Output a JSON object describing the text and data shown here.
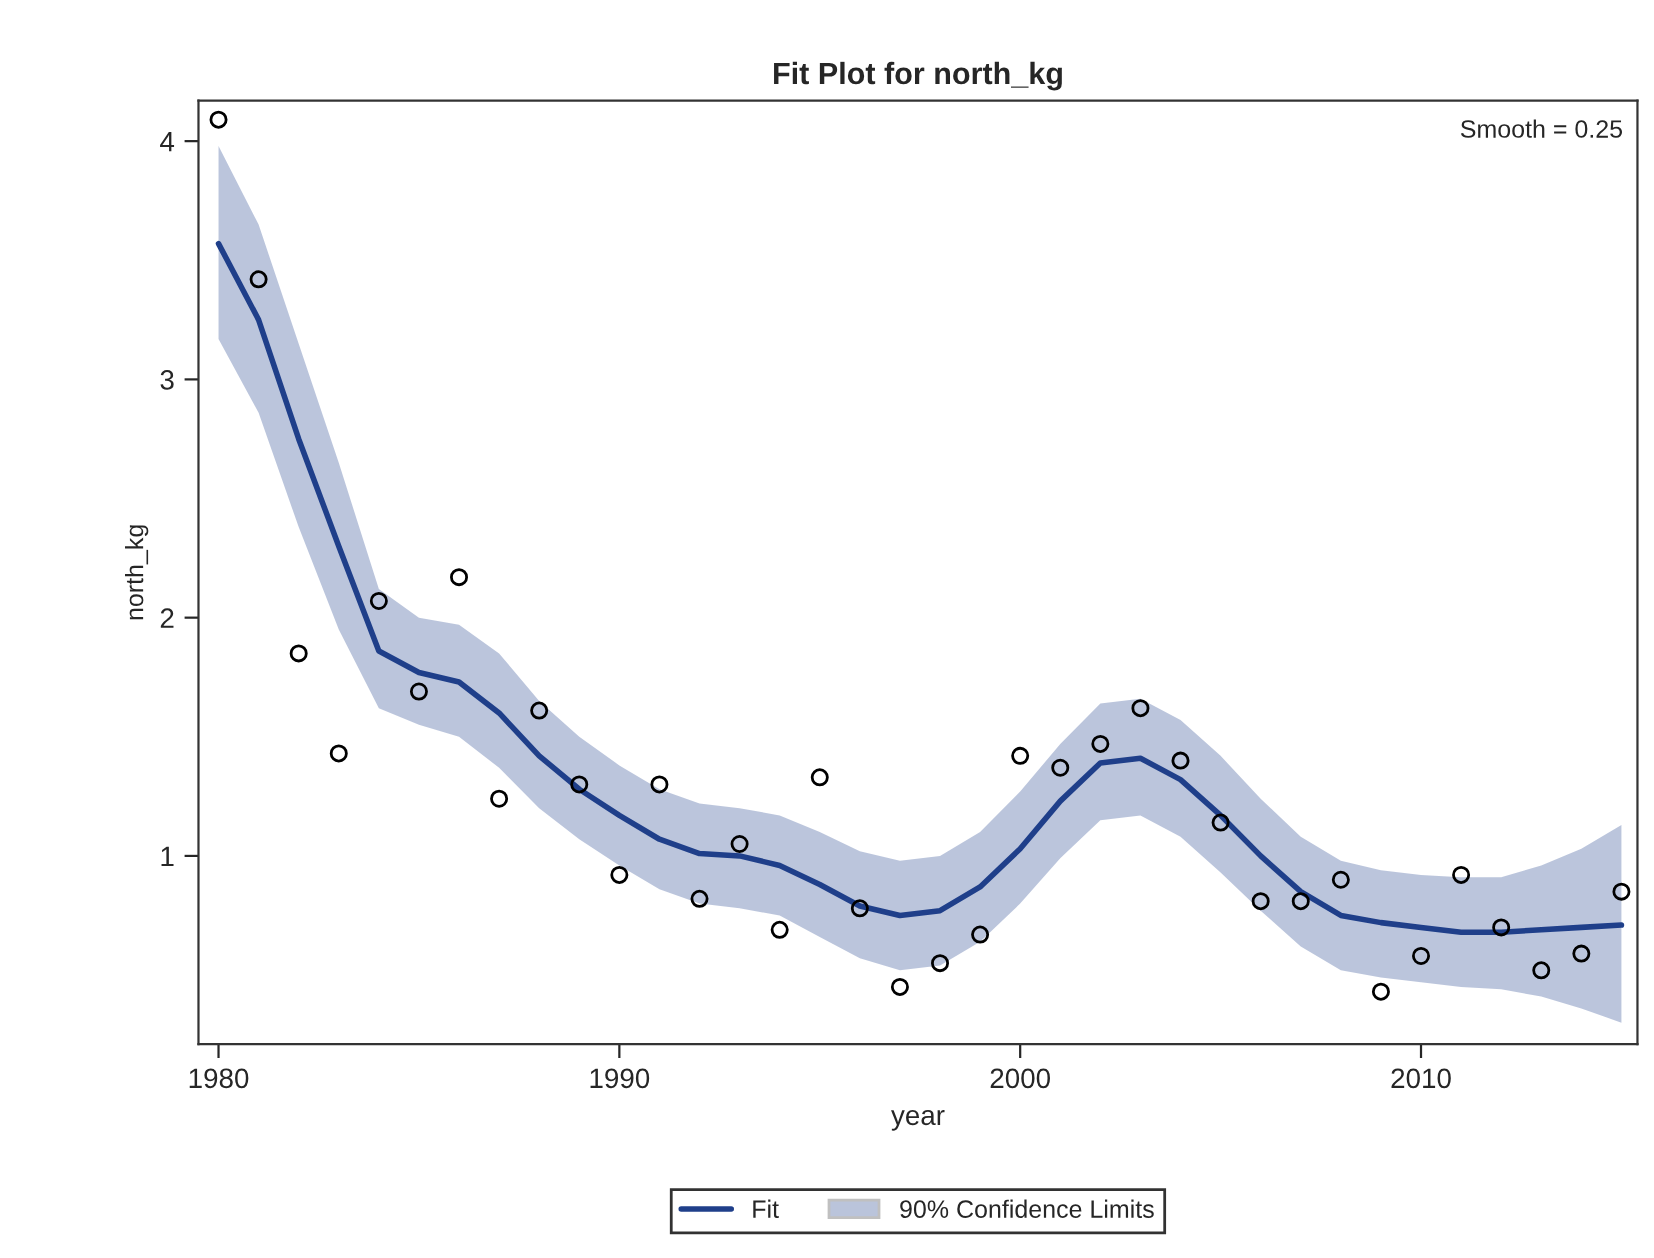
{
  "chart_data": {
    "type": "line",
    "title": "Fit Plot for north_kg",
    "xlabel": "year",
    "ylabel": "north_kg",
    "annotations": [
      "Smooth = 0.25",
      "90% Confidence Limits"
    ],
    "x": [
      1980,
      1981,
      1982,
      1983,
      1984,
      1985,
      1986,
      1987,
      1988,
      1989,
      1990,
      1991,
      1992,
      1993,
      1994,
      1995,
      1996,
      1997,
      1998,
      1999,
      2000,
      2001,
      2002,
      2003,
      2004,
      2005,
      2006,
      2007,
      2008,
      2009,
      2010,
      2011,
      2012,
      2013,
      2014,
      2015
    ],
    "series": [
      {
        "name": "Fit",
        "color": "#1f3f8a",
        "values": [
          3.57,
          3.25,
          2.75,
          2.3,
          1.86,
          1.77,
          1.73,
          1.6,
          1.42,
          1.28,
          1.17,
          1.07,
          1.01,
          1.0,
          0.96,
          0.88,
          0.79,
          0.75,
          0.77,
          0.87,
          1.03,
          1.23,
          1.39,
          1.41,
          1.32,
          1.17,
          1.0,
          0.85,
          0.75,
          0.72,
          0.7,
          0.68,
          0.68,
          0.69,
          0.7,
          0.71
        ],
        "upper": [
          3.98,
          3.65,
          3.15,
          2.65,
          2.12,
          2.0,
          1.97,
          1.85,
          1.65,
          1.5,
          1.38,
          1.28,
          1.22,
          1.2,
          1.17,
          1.1,
          1.02,
          0.98,
          1.0,
          1.1,
          1.27,
          1.47,
          1.64,
          1.66,
          1.57,
          1.42,
          1.24,
          1.08,
          0.98,
          0.94,
          0.92,
          0.91,
          0.91,
          0.96,
          1.03,
          1.13
        ],
        "lower": [
          3.17,
          2.86,
          2.38,
          1.95,
          1.62,
          1.55,
          1.5,
          1.37,
          1.2,
          1.07,
          0.96,
          0.86,
          0.8,
          0.78,
          0.75,
          0.66,
          0.57,
          0.52,
          0.54,
          0.64,
          0.8,
          0.99,
          1.15,
          1.17,
          1.08,
          0.93,
          0.77,
          0.62,
          0.52,
          0.49,
          0.47,
          0.45,
          0.44,
          0.41,
          0.36,
          0.3
        ]
      },
      {
        "type": "scatter",
        "color": "#000000",
        "marker": "circle",
        "values": [
          4.09,
          3.42,
          1.85,
          1.43,
          2.07,
          1.69,
          2.17,
          1.24,
          1.61,
          1.3,
          0.92,
          1.3,
          0.82,
          1.05,
          0.69,
          1.33,
          0.78,
          0.45,
          0.55,
          0.67,
          1.42,
          1.37,
          1.47,
          1.62,
          1.4,
          1.14,
          0.81,
          0.81,
          0.9,
          0.43,
          0.58,
          0.92,
          0.7,
          0.52,
          0.59,
          0.85
        ]
      }
    ],
    "xlim": [
      1979.5,
      2015.4
    ],
    "xticks": [
      1980,
      1990,
      2000,
      2010
    ],
    "ylim": [
      0.21,
      4.17
    ],
    "yticks": [
      1,
      2,
      3,
      4
    ],
    "grid": false,
    "legend": "bottom"
  }
}
